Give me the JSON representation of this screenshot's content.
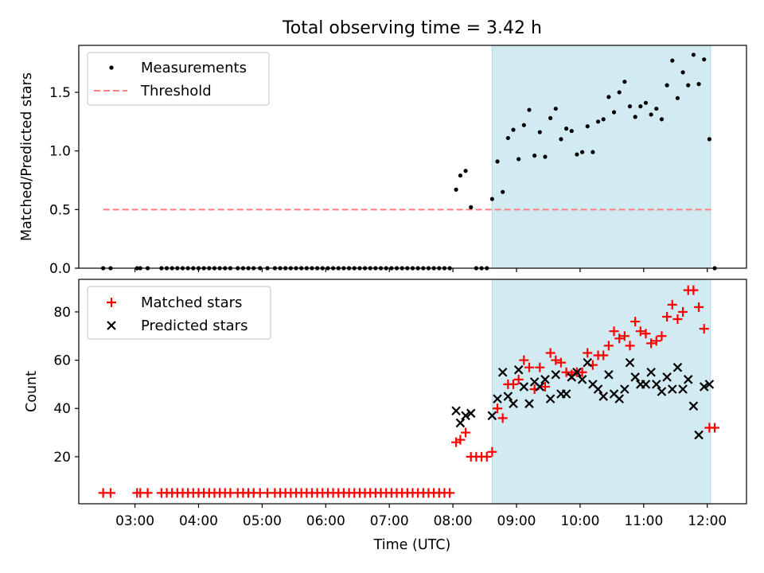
{
  "figure": {
    "title": "Total observing time = 3.42 h",
    "xlabel": "Time (UTC)"
  },
  "colors": {
    "shade": "#add8e6",
    "measurements": "#000000",
    "threshold": "#ff7f7f",
    "matched": "#ff0000",
    "predicted": "#000000"
  },
  "chart_data": [
    {
      "type": "scatter",
      "panel": "top",
      "ylabel": "Matched/Predicted stars",
      "xlim": [
        "02:07",
        "12:37"
      ],
      "ylim": [
        0,
        1.9
      ],
      "yticks": [
        0.0,
        0.5,
        1.0,
        1.5
      ],
      "ytick_labels": [
        "0.0",
        "0.5",
        "1.0",
        "1.5"
      ],
      "xticks": [
        "03:00",
        "04:00",
        "05:00",
        "06:00",
        "07:00",
        "08:00",
        "09:00",
        "10:00",
        "11:00",
        "12:00"
      ],
      "show_xtick_labels": false,
      "grid": false,
      "legend": {
        "position": "upper-left",
        "entries": [
          {
            "label": "Measurements",
            "marker": "dot"
          },
          {
            "label": "Threshold",
            "marker": "dashed-line"
          }
        ]
      },
      "shaded_region": {
        "start": "08:37",
        "end": "12:03"
      },
      "threshold": {
        "name": "Threshold",
        "x": [
          "02:30",
          "12:05"
        ],
        "y": 0.5
      },
      "series": [
        {
          "name": "Measurements",
          "marker": "dot",
          "x": [
            "02:30",
            "02:37",
            "03:02",
            "03:05",
            "03:12",
            "03:25",
            "03:30",
            "03:35",
            "03:40",
            "03:45",
            "03:50",
            "03:55",
            "04:00",
            "04:05",
            "04:10",
            "04:15",
            "04:20",
            "04:25",
            "04:30",
            "04:37",
            "04:42",
            "04:47",
            "04:52",
            "04:58",
            "05:05",
            "05:12",
            "05:17",
            "05:22",
            "05:27",
            "05:32",
            "05:37",
            "05:42",
            "05:47",
            "05:52",
            "05:57",
            "06:02",
            "06:07",
            "06:12",
            "06:17",
            "06:22",
            "06:27",
            "06:32",
            "06:37",
            "06:42",
            "06:47",
            "06:52",
            "06:57",
            "07:02",
            "07:07",
            "07:12",
            "07:17",
            "07:22",
            "07:27",
            "07:32",
            "07:37",
            "07:42",
            "07:47",
            "07:52",
            "07:57",
            "08:03",
            "08:07",
            "08:12",
            "08:17",
            "08:22",
            "08:27",
            "08:32",
            "08:37",
            "08:42",
            "08:47",
            "08:52",
            "08:57",
            "09:02",
            "09:07",
            "09:12",
            "09:17",
            "09:22",
            "09:27",
            "09:32",
            "09:37",
            "09:42",
            "09:47",
            "09:52",
            "09:57",
            "10:02",
            "10:07",
            "10:12",
            "10:17",
            "10:22",
            "10:27",
            "10:32",
            "10:37",
            "10:42",
            "10:47",
            "10:52",
            "10:57",
            "11:02",
            "11:07",
            "11:12",
            "11:17",
            "11:22",
            "11:27",
            "11:32",
            "11:37",
            "11:42",
            "11:47",
            "11:52",
            "11:57",
            "12:02",
            "12:07"
          ],
          "y": [
            0,
            0,
            0,
            0,
            0,
            0,
            0,
            0,
            0,
            0,
            0,
            0,
            0,
            0,
            0,
            0,
            0,
            0,
            0,
            0,
            0,
            0,
            0,
            0,
            0,
            0,
            0,
            0,
            0,
            0,
            0,
            0,
            0,
            0,
            0,
            0,
            0,
            0,
            0,
            0,
            0,
            0,
            0,
            0,
            0,
            0,
            0,
            0,
            0,
            0,
            0,
            0,
            0,
            0,
            0,
            0,
            0,
            0,
            0,
            0.67,
            0.79,
            0.83,
            0.52,
            0,
            0,
            0,
            0.59,
            0.91,
            0.65,
            1.11,
            1.18,
            0.93,
            1.22,
            1.35,
            0.96,
            1.16,
            0.95,
            1.28,
            1.36,
            1.1,
            1.19,
            1.17,
            0.97,
            0.99,
            1.21,
            0.99,
            1.25,
            1.27,
            1.46,
            1.33,
            1.5,
            1.59,
            1.38,
            1.29,
            1.38,
            1.41,
            1.31,
            1.36,
            1.27,
            1.56,
            1.77,
            1.45,
            1.67,
            1.56,
            1.82,
            1.57,
            1.78,
            1.1,
            0
          ]
        }
      ]
    },
    {
      "type": "scatter",
      "panel": "bottom",
      "ylabel": "Count",
      "xlabel": "Time (UTC)",
      "xlim": [
        "02:07",
        "12:37"
      ],
      "ylim": [
        0.5,
        93.5
      ],
      "yticks": [
        20,
        40,
        60,
        80
      ],
      "ytick_labels": [
        "20",
        "40",
        "60",
        "80"
      ],
      "xticks": [
        "03:00",
        "04:00",
        "05:00",
        "06:00",
        "07:00",
        "08:00",
        "09:00",
        "10:00",
        "11:00",
        "12:00"
      ],
      "xtick_labels": [
        "03:00",
        "04:00",
        "05:00",
        "06:00",
        "07:00",
        "08:00",
        "09:00",
        "10:00",
        "11:00",
        "12:00"
      ],
      "grid": false,
      "legend": {
        "position": "upper-left",
        "entries": [
          {
            "label": "Matched stars",
            "marker": "plus"
          },
          {
            "label": "Predicted stars",
            "marker": "x"
          }
        ]
      },
      "shaded_region": {
        "start": "08:37",
        "end": "12:03"
      },
      "series": [
        {
          "name": "Matched stars",
          "marker": "plus",
          "x": [
            "02:30",
            "02:37",
            "03:02",
            "03:05",
            "03:12",
            "03:25",
            "03:30",
            "03:35",
            "03:40",
            "03:45",
            "03:50",
            "03:55",
            "04:00",
            "04:05",
            "04:10",
            "04:15",
            "04:20",
            "04:25",
            "04:30",
            "04:37",
            "04:42",
            "04:47",
            "04:52",
            "04:58",
            "05:05",
            "05:12",
            "05:17",
            "05:22",
            "05:27",
            "05:32",
            "05:37",
            "05:42",
            "05:47",
            "05:52",
            "05:57",
            "06:02",
            "06:07",
            "06:12",
            "06:17",
            "06:22",
            "06:27",
            "06:32",
            "06:37",
            "06:42",
            "06:47",
            "06:52",
            "06:57",
            "07:02",
            "07:07",
            "07:12",
            "07:17",
            "07:22",
            "07:27",
            "07:32",
            "07:37",
            "07:42",
            "07:47",
            "07:52",
            "07:57",
            "08:03",
            "08:07",
            "08:12",
            "08:17",
            "08:22",
            "08:27",
            "08:32",
            "08:37",
            "08:42",
            "08:47",
            "08:52",
            "08:57",
            "09:02",
            "09:07",
            "09:12",
            "09:17",
            "09:22",
            "09:27",
            "09:32",
            "09:37",
            "09:42",
            "09:47",
            "09:52",
            "09:57",
            "10:02",
            "10:07",
            "10:12",
            "10:17",
            "10:22",
            "10:27",
            "10:32",
            "10:37",
            "10:42",
            "10:47",
            "10:52",
            "10:57",
            "11:02",
            "11:07",
            "11:12",
            "11:17",
            "11:22",
            "11:27",
            "11:32",
            "11:37",
            "11:42",
            "11:47",
            "11:52",
            "11:57",
            "12:02",
            "12:07"
          ],
          "y": [
            5,
            5,
            5,
            5,
            5,
            5,
            5,
            5,
            5,
            5,
            5,
            5,
            5,
            5,
            5,
            5,
            5,
            5,
            5,
            5,
            5,
            5,
            5,
            5,
            5,
            5,
            5,
            5,
            5,
            5,
            5,
            5,
            5,
            5,
            5,
            5,
            5,
            5,
            5,
            5,
            5,
            5,
            5,
            5,
            5,
            5,
            5,
            5,
            5,
            5,
            5,
            5,
            5,
            5,
            5,
            5,
            5,
            5,
            5,
            26,
            27,
            30,
            20,
            20,
            20,
            20,
            22,
            40,
            36,
            50,
            50,
            52,
            60,
            57,
            48,
            57,
            49,
            63,
            60,
            59,
            55,
            54,
            55,
            55,
            63,
            58,
            62,
            62,
            66,
            72,
            69,
            70,
            66,
            76,
            72,
            71,
            67,
            68,
            70,
            78,
            83,
            77,
            80,
            89,
            89,
            82,
            73,
            32,
            32
          ]
        },
        {
          "name": "Predicted stars",
          "marker": "x",
          "x": [
            "08:03",
            "08:07",
            "08:12",
            "08:17",
            "08:37",
            "08:42",
            "08:47",
            "08:52",
            "08:57",
            "09:02",
            "09:07",
            "09:12",
            "09:17",
            "09:22",
            "09:27",
            "09:32",
            "09:37",
            "09:42",
            "09:47",
            "09:52",
            "09:57",
            "10:02",
            "10:07",
            "10:12",
            "10:17",
            "10:22",
            "10:27",
            "10:32",
            "10:37",
            "10:42",
            "10:47",
            "10:52",
            "10:57",
            "11:02",
            "11:07",
            "11:12",
            "11:17",
            "11:22",
            "11:27",
            "11:32",
            "11:37",
            "11:42",
            "11:47",
            "11:52",
            "11:57",
            "12:02"
          ],
          "y": [
            39,
            34,
            37,
            38,
            37,
            44,
            55,
            45,
            42,
            56,
            49,
            42,
            51,
            49,
            52,
            44,
            54,
            46,
            46,
            53,
            55,
            52,
            59,
            50,
            48,
            45,
            54,
            46,
            44,
            48,
            59,
            53,
            50,
            50,
            55,
            50,
            47,
            53,
            48,
            57,
            48,
            52,
            41,
            29,
            49,
            50
          ]
        }
      ]
    }
  ]
}
